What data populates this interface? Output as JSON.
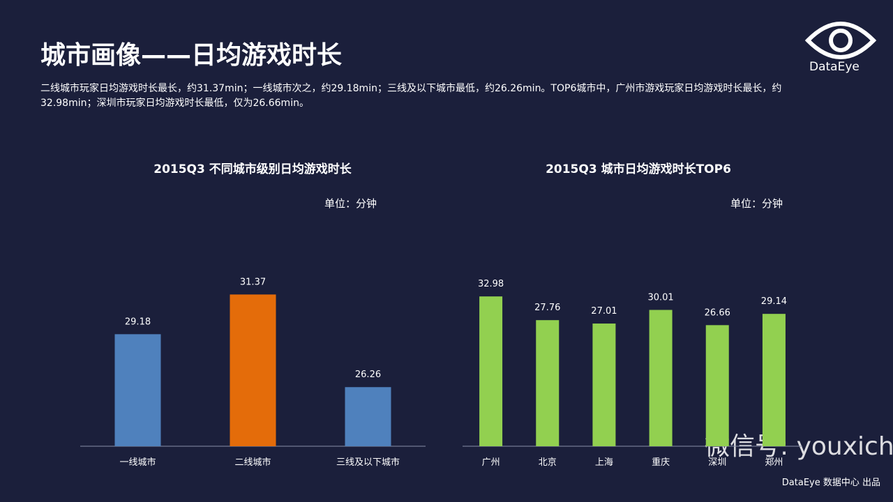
{
  "header": {
    "title": "城市画像——日均游戏时长",
    "description": "二线城市玩家日均游戏时长最长，约31.37min；一线城市次之，约29.18min；三线及以下城市最低，约26.26min。TOP6城市中，广州市游戏玩家日均游戏时长最长，约32.98min；深圳市玩家日均游戏时长最低，仅为26.66min。",
    "logo": "DataEye"
  },
  "chart_data": [
    {
      "type": "bar",
      "title": "2015Q3  不同城市级别日均游戏时长",
      "unit": "单位：分钟",
      "categories": [
        "一线城市",
        "二线城市",
        "三线及以下城市"
      ],
      "values": [
        29.18,
        31.37,
        26.26
      ],
      "colors": [
        "#4f81bd",
        "#e46c0a",
        "#4f81bd"
      ],
      "ylim": [
        23,
        32
      ]
    },
    {
      "type": "bar",
      "title": "2015Q3  城市日均游戏时长TOP6",
      "unit": "单位：分钟",
      "categories": [
        "广州",
        "北京",
        "上海",
        "重庆",
        "深圳",
        "郑州"
      ],
      "values": [
        32.98,
        27.76,
        27.01,
        30.01,
        26.66,
        29.14
      ],
      "colors": [
        "#92d050",
        "#92d050",
        "#92d050",
        "#92d050",
        "#92d050",
        "#92d050"
      ],
      "ylim": [
        0,
        35
      ]
    }
  ],
  "watermark": "微信号: youxichaguan",
  "footer": "DataEye 数据中心 出品"
}
